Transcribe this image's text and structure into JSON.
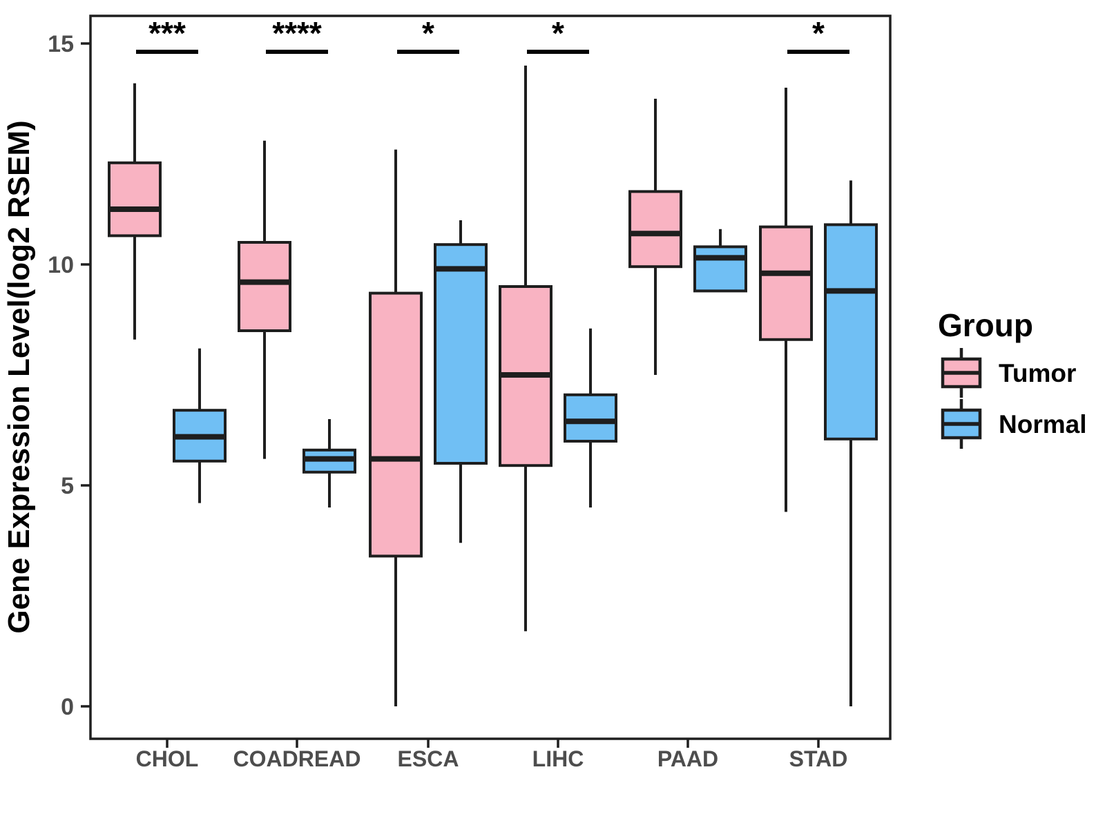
{
  "y_axis": {
    "label": "Gene Expression Level(log2 RSEM)",
    "ticks": [
      0,
      5,
      10,
      15
    ]
  },
  "x_axis": {
    "categories": [
      "CHOL",
      "COADREAD",
      "ESCA",
      "LIHC",
      "PAAD",
      "STAD"
    ]
  },
  "legend": {
    "title": "Group",
    "items": [
      {
        "label": "Tumor",
        "color": "#F9B3C2"
      },
      {
        "label": "Normal",
        "color": "#70BFF4"
      }
    ]
  },
  "colors": {
    "tumor_fill": "#F9B3C2",
    "normal_fill": "#70BFF4",
    "box_stroke": "#1E1E1E",
    "tick_text": "#4D4D4D",
    "panel_border": "#1F1F1F"
  },
  "chart_data": {
    "type": "boxplot",
    "title": "",
    "xlabel": "",
    "ylabel": "Gene Expression Level(log2 RSEM)",
    "ylim": [
      -0.75,
      15.6
    ],
    "yticks": [
      0,
      5,
      10,
      15
    ],
    "grid": false,
    "legend_position": "right",
    "categories": [
      "CHOL",
      "COADREAD",
      "ESCA",
      "LIHC",
      "PAAD",
      "STAD"
    ],
    "series": [
      {
        "name": "Tumor",
        "color": "#F9B3C2",
        "boxes": [
          {
            "category": "CHOL",
            "min": 8.3,
            "q1": 10.65,
            "median": 11.25,
            "q3": 12.3,
            "max": 14.1
          },
          {
            "category": "COADREAD",
            "min": 5.6,
            "q1": 8.5,
            "median": 9.6,
            "q3": 10.5,
            "max": 12.8
          },
          {
            "category": "ESCA",
            "min": 0.0,
            "q1": 3.4,
            "median": 5.6,
            "q3": 9.35,
            "max": 12.6
          },
          {
            "category": "LIHC",
            "min": 1.7,
            "q1": 5.45,
            "median": 7.5,
            "q3": 9.5,
            "max": 14.5
          },
          {
            "category": "PAAD",
            "min": 7.5,
            "q1": 9.95,
            "median": 10.7,
            "q3": 11.65,
            "max": 13.75
          },
          {
            "category": "STAD",
            "min": 4.4,
            "q1": 8.3,
            "median": 9.8,
            "q3": 10.85,
            "max": 14.0
          }
        ]
      },
      {
        "name": "Normal",
        "color": "#70BFF4",
        "boxes": [
          {
            "category": "CHOL",
            "min": 4.6,
            "q1": 5.55,
            "median": 6.1,
            "q3": 6.7,
            "max": 8.1
          },
          {
            "category": "COADREAD",
            "min": 4.5,
            "q1": 5.3,
            "median": 5.6,
            "q3": 5.8,
            "max": 6.5
          },
          {
            "category": "ESCA",
            "min": 3.7,
            "q1": 5.5,
            "median": 9.9,
            "q3": 10.45,
            "max": 11.0
          },
          {
            "category": "LIHC",
            "min": 4.5,
            "q1": 6.0,
            "median": 6.45,
            "q3": 7.05,
            "max": 8.55
          },
          {
            "category": "PAAD",
            "min": 9.4,
            "q1": 9.4,
            "median": 10.15,
            "q3": 10.4,
            "max": 10.8
          },
          {
            "category": "STAD",
            "min": 0.0,
            "q1": 6.05,
            "median": 9.4,
            "q3": 10.9,
            "max": 11.9
          }
        ]
      }
    ],
    "significance": [
      {
        "category": "CHOL",
        "label": "***"
      },
      {
        "category": "COADREAD",
        "label": "****"
      },
      {
        "category": "ESCA",
        "label": "*"
      },
      {
        "category": "LIHC",
        "label": "*"
      },
      {
        "category": "STAD",
        "label": "*"
      }
    ]
  }
}
